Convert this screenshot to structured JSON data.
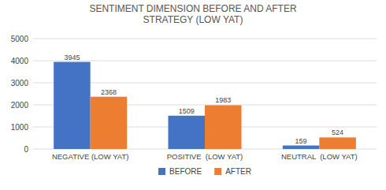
{
  "chart_data": {
    "type": "bar",
    "title": "SENTIMENT DIMENSION BEFORE AND AFTER\nSTRATEGY (LOW YAT)",
    "categories": [
      "NEGATIVE (LOW YAT)",
      "POSITIVE  (LOW YAT)",
      "NEUTRAL  (LOW YAT)"
    ],
    "series": [
      {
        "name": "BEFORE",
        "color": "#4472C4",
        "values": [
          3945,
          1509,
          159
        ]
      },
      {
        "name": "AFTER",
        "color": "#ED7D31",
        "values": [
          2368,
          1983,
          524
        ]
      }
    ],
    "ylim": [
      0,
      5000
    ],
    "yticks": [
      0,
      1000,
      2000,
      3000,
      4000,
      5000
    ],
    "grid": true,
    "legend": "bottom",
    "data_labels": true
  }
}
